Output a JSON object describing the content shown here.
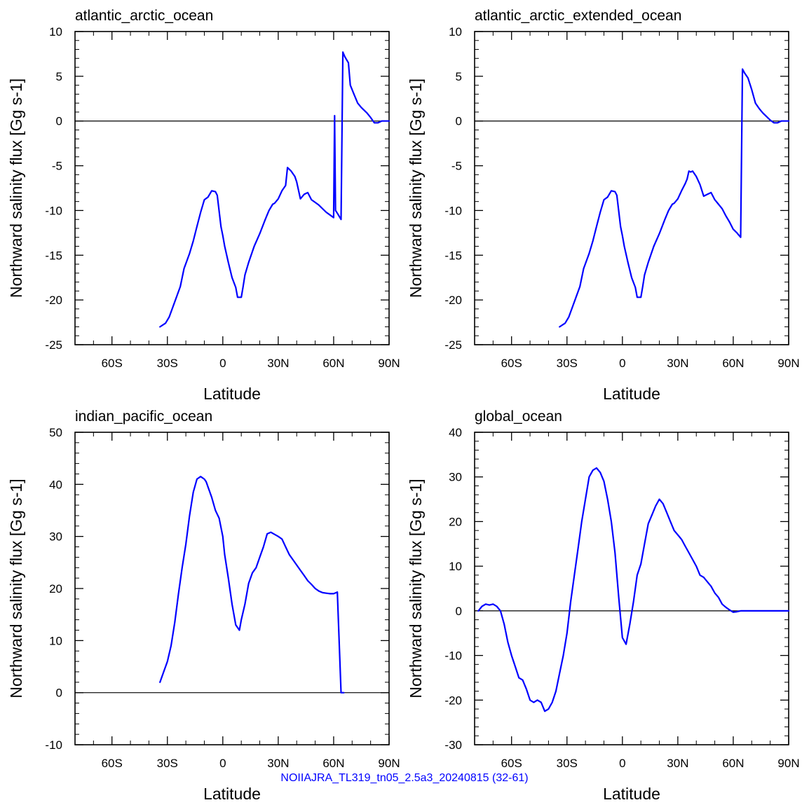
{
  "footer": "NOIIAJRA_TL319_tn05_2.5a3_20240815 (32-61)",
  "line_color": "#0000ff",
  "chart_data": [
    {
      "type": "line",
      "title": "atlantic_arctic_ocean",
      "xlabel": "Latitude",
      "ylabel": "Northward salinity flux [Gg s-1]",
      "xlim": [
        -80,
        90
      ],
      "ylim": [
        -25,
        10
      ],
      "xticks": [
        -60,
        -30,
        0,
        30,
        60,
        90
      ],
      "xticklabels": [
        "60S",
        "30S",
        "0",
        "30N",
        "60N",
        "90N"
      ],
      "yticks": [
        -25,
        -20,
        -15,
        -10,
        -5,
        0,
        5,
        10
      ],
      "yticklabels": [
        "-25",
        "-20",
        "-15",
        "-10",
        "-5",
        "0",
        "5",
        "10"
      ],
      "zero_line": true,
      "x": [
        -34,
        -31,
        -29,
        -26,
        -23,
        -21,
        -18,
        -16,
        -14,
        -12,
        -10,
        -8,
        -6,
        -4,
        -3,
        -1,
        0,
        1,
        3,
        5,
        7,
        8,
        10,
        11,
        12,
        14,
        17,
        20,
        23,
        25,
        27,
        28,
        30,
        32,
        34,
        35,
        37,
        39,
        40,
        42,
        44,
        46,
        48,
        50,
        52,
        54,
        56,
        58,
        60,
        60.5,
        61,
        62,
        64,
        65,
        66,
        68,
        69,
        71,
        73,
        75,
        78,
        80,
        82,
        84,
        86,
        88,
        90
      ],
      "y": [
        -23,
        -22.6,
        -21.9,
        -20.2,
        -18.5,
        -16.5,
        -14.8,
        -13.4,
        -11.8,
        -10.2,
        -8.8,
        -8.5,
        -7.8,
        -7.9,
        -8.3,
        -11.8,
        -12.8,
        -14,
        -15.8,
        -17.5,
        -18.6,
        -19.7,
        -19.7,
        -18.5,
        -17.2,
        -15.8,
        -14,
        -12.6,
        -11,
        -10,
        -9.3,
        -9.2,
        -8.7,
        -7.8,
        -7.2,
        -5.2,
        -5.6,
        -6.2,
        -6.8,
        -8.7,
        -8.2,
        -8,
        -8.8,
        -9.1,
        -9.4,
        -9.8,
        -10.2,
        -10.5,
        -10.8,
        0.6,
        -10,
        -10.3,
        -11,
        7.7,
        7.2,
        6.5,
        4,
        3,
        2,
        1.5,
        0.9,
        0.4,
        -0.2,
        -0.2,
        0,
        0,
        0
      ]
    },
    {
      "type": "line",
      "title": "atlantic_arctic_extended_ocean",
      "xlabel": "Latitude",
      "ylabel": "Northward salinity flux [Gg s-1]",
      "xlim": [
        -80,
        90
      ],
      "ylim": [
        -25,
        10
      ],
      "xticks": [
        -60,
        -30,
        0,
        30,
        60,
        90
      ],
      "xticklabels": [
        "60S",
        "30S",
        "0",
        "30N",
        "60N",
        "90N"
      ],
      "yticks": [
        -25,
        -20,
        -15,
        -10,
        -5,
        0,
        5,
        10
      ],
      "yticklabels": [
        "-25",
        "-20",
        "-15",
        "-10",
        "-5",
        "0",
        "5",
        "10"
      ],
      "zero_line": true,
      "x": [
        -34,
        -31,
        -29,
        -26,
        -23,
        -21,
        -18,
        -16,
        -14,
        -12,
        -10,
        -8,
        -6,
        -4,
        -3,
        -1,
        0,
        1,
        3,
        5,
        7,
        8,
        10,
        11,
        12,
        14,
        17,
        20,
        23,
        25,
        27,
        28,
        30,
        32,
        34,
        35,
        36,
        37,
        38,
        40,
        42,
        44,
        46,
        48,
        50,
        52,
        54,
        56,
        58,
        60,
        62,
        64,
        65,
        66,
        68,
        70,
        72,
        74,
        76,
        78,
        80,
        82,
        84,
        86,
        88,
        90
      ],
      "y": [
        -23,
        -22.6,
        -21.9,
        -20.2,
        -18.5,
        -16.5,
        -14.8,
        -13.4,
        -11.8,
        -10.2,
        -8.8,
        -8.5,
        -7.8,
        -7.9,
        -8.3,
        -11.8,
        -12.8,
        -14,
        -15.8,
        -17.5,
        -18.6,
        -19.7,
        -19.7,
        -18.5,
        -17.2,
        -15.8,
        -14,
        -12.6,
        -11,
        -10,
        -9.3,
        -9.2,
        -8.7,
        -7.8,
        -7,
        -6.5,
        -5.6,
        -5.7,
        -5.6,
        -6.2,
        -7.1,
        -8.4,
        -8.2,
        -8,
        -8.8,
        -9.3,
        -9.8,
        -10.6,
        -11.3,
        -12.1,
        -12.5,
        -13,
        5.8,
        5.4,
        4.8,
        3.5,
        2,
        1.4,
        0.9,
        0.5,
        0.1,
        -0.2,
        -0.2,
        0,
        0,
        0
      ]
    },
    {
      "type": "line",
      "title": "indian_pacific_ocean",
      "xlabel": "Latitude",
      "ylabel": "Northward salinity flux [Gg s-1]",
      "xlim": [
        -80,
        90
      ],
      "ylim": [
        -10,
        50
      ],
      "xticks": [
        -60,
        -30,
        0,
        30,
        60,
        90
      ],
      "xticklabels": [
        "60S",
        "30S",
        "0",
        "30N",
        "60N",
        "90N"
      ],
      "yticks": [
        -10,
        0,
        10,
        20,
        30,
        40,
        50
      ],
      "yticklabels": [
        "-10",
        "0",
        "10",
        "20",
        "30",
        "40",
        "50"
      ],
      "zero_line": true,
      "x": [
        -34,
        -32,
        -30,
        -28,
        -26,
        -24,
        -22,
        -20,
        -18,
        -16,
        -14,
        -12,
        -10,
        -9,
        -8,
        -6,
        -4,
        -2,
        0,
        1,
        3,
        5,
        7,
        9,
        10,
        12,
        14,
        16,
        18,
        20,
        22,
        24,
        26,
        28,
        30,
        32,
        34,
        36,
        38,
        40,
        42,
        44,
        46,
        48,
        50,
        52,
        54,
        56,
        58,
        60,
        62,
        64,
        65,
        65.5
      ],
      "y": [
        2,
        4,
        6,
        9,
        13.5,
        19,
        24,
        28.5,
        34,
        38.5,
        41,
        41.5,
        41,
        40.5,
        39.5,
        37.5,
        35,
        33.5,
        30,
        26.5,
        22,
        17,
        13,
        12,
        14,
        17,
        21,
        23,
        24,
        26,
        28,
        30.5,
        30.8,
        30.4,
        30,
        29.5,
        28,
        26.5,
        25.5,
        24.5,
        23.5,
        22.5,
        21.5,
        20.8,
        20,
        19.5,
        19.2,
        19.1,
        19,
        19,
        19.3,
        0,
        0,
        0
      ]
    },
    {
      "type": "line",
      "title": "global_ocean",
      "xlabel": "Latitude",
      "ylabel": "Northward salinity flux [Gg s-1]",
      "xlim": [
        -80,
        90
      ],
      "ylim": [
        -30,
        40
      ],
      "xticks": [
        -60,
        -30,
        0,
        30,
        60,
        90
      ],
      "xticklabels": [
        "60S",
        "30S",
        "0",
        "30N",
        "60N",
        "90N"
      ],
      "yticks": [
        -30,
        -20,
        -10,
        0,
        10,
        20,
        30,
        40
      ],
      "yticklabels": [
        "-30",
        "-20",
        "-10",
        "0",
        "10",
        "20",
        "30",
        "40"
      ],
      "zero_line": true,
      "x": [
        -78,
        -76,
        -74,
        -72,
        -70,
        -68,
        -66,
        -64,
        -62,
        -60,
        -58,
        -56,
        -54,
        -52,
        -50,
        -48,
        -46,
        -44,
        -42,
        -40,
        -38,
        -36,
        -34,
        -32,
        -30,
        -28,
        -26,
        -24,
        -22,
        -20,
        -18,
        -16,
        -14,
        -12,
        -10,
        -8,
        -6,
        -4,
        -2,
        0,
        2,
        4,
        6,
        8,
        10,
        12,
        14,
        16,
        18,
        20,
        22,
        24,
        26,
        28,
        30,
        32,
        34,
        36,
        38,
        40,
        42,
        44,
        46,
        48,
        50,
        52,
        54,
        56,
        58,
        60,
        62,
        64,
        66,
        68,
        70,
        72,
        74,
        76,
        78,
        80,
        82,
        84,
        86,
        88,
        90
      ],
      "y": [
        0,
        1,
        1.5,
        1.3,
        1.5,
        1,
        0,
        -3,
        -7,
        -10,
        -12.5,
        -15,
        -15.5,
        -17.5,
        -20,
        -20.5,
        -20,
        -20.5,
        -22.5,
        -22,
        -20.5,
        -18,
        -14,
        -10,
        -5,
        2,
        8,
        14,
        20,
        25,
        30,
        31.5,
        32,
        31,
        29,
        25,
        20,
        13,
        3,
        -6,
        -7.5,
        -3,
        2,
        8,
        10.5,
        15,
        19.5,
        21.5,
        23.5,
        25,
        24,
        22,
        20,
        18,
        17,
        16,
        14.5,
        13,
        11.5,
        10,
        8,
        7.5,
        6.5,
        5.5,
        4,
        3,
        1.5,
        0.8,
        0.2,
        -0.3,
        -0.2,
        0,
        0,
        0,
        0,
        0,
        0,
        0,
        0,
        0,
        0,
        0,
        0,
        0,
        0
      ]
    }
  ]
}
